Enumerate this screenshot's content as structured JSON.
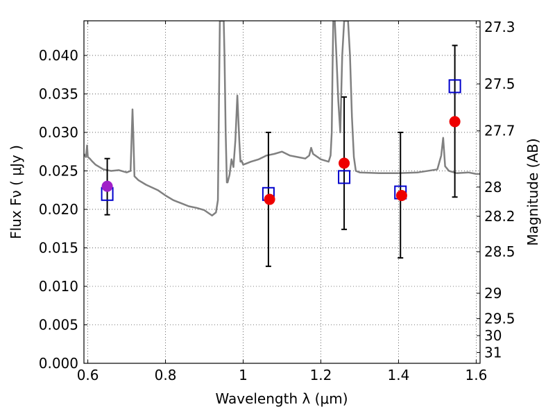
{
  "chart_data": {
    "type": "scatter",
    "xlabel": "Wavelength  λ (μm)",
    "ylabel": "Flux  Fν  ( μJy )",
    "y2label": "Magnitude (AB)",
    "xlim": [
      0.59,
      1.61
    ],
    "ylim": [
      0.0,
      0.0445
    ],
    "grid": true,
    "x_ticks": [
      0.6,
      0.8,
      1.0,
      1.2,
      1.4,
      1.6
    ],
    "x_tick_labels": [
      "0.6",
      "0.8",
      "1",
      "1.2",
      "1.4",
      "1.6"
    ],
    "y_ticks": [
      0.0,
      0.005,
      0.01,
      0.015,
      0.02,
      0.025,
      0.03,
      0.035,
      0.04
    ],
    "y_tick_labels": [
      "0.000",
      "0.005",
      "0.010",
      "0.015",
      "0.020",
      "0.025",
      "0.030",
      "0.035",
      "0.040"
    ],
    "y2_ticks": [
      {
        "label": "27.3",
        "flux": 0.0437
      },
      {
        "label": "27.5",
        "flux": 0.0363
      },
      {
        "label": "27.7",
        "flux": 0.0302
      },
      {
        "label": "28",
        "flux": 0.0229
      },
      {
        "label": "28.2",
        "flux": 0.0191
      },
      {
        "label": "28.5",
        "flux": 0.0145
      },
      {
        "label": "29",
        "flux": 0.0091
      },
      {
        "label": "29.5",
        "flux": 0.0058
      },
      {
        "label": "30",
        "flux": 0.0036
      },
      {
        "label": "31",
        "flux": 0.0014
      }
    ],
    "series": [
      {
        "kind": "line",
        "color": "#808080",
        "x": [
          0.59,
          0.595,
          0.598,
          0.6,
          0.605,
          0.61,
          0.62,
          0.63,
          0.64,
          0.66,
          0.68,
          0.7,
          0.71,
          0.715,
          0.717,
          0.72,
          0.73,
          0.75,
          0.78,
          0.8,
          0.82,
          0.84,
          0.86,
          0.88,
          0.9,
          0.92,
          0.93,
          0.935,
          0.94,
          0.945,
          0.948,
          0.95,
          0.952,
          0.955,
          0.958,
          0.96,
          0.965,
          0.97,
          0.975,
          0.98,
          0.985,
          0.99,
          0.993,
          0.996,
          1.0,
          1.01,
          1.02,
          1.04,
          1.06,
          1.08,
          1.1,
          1.12,
          1.14,
          1.16,
          1.17,
          1.175,
          1.18,
          1.2,
          1.22,
          1.225,
          1.228,
          1.23,
          1.232,
          1.234,
          1.236,
          1.24,
          1.245,
          1.25,
          1.255,
          1.26,
          1.265,
          1.27,
          1.275,
          1.28,
          1.285,
          1.29,
          1.3,
          1.35,
          1.4,
          1.45,
          1.5,
          1.51,
          1.515,
          1.52,
          1.53,
          1.55,
          1.58,
          1.6,
          1.61
        ],
        "y": [
          0.0272,
          0.0268,
          0.0283,
          0.0268,
          0.0266,
          0.0263,
          0.0258,
          0.0255,
          0.0252,
          0.025,
          0.0251,
          0.0248,
          0.025,
          0.033,
          0.03,
          0.0243,
          0.0238,
          0.0232,
          0.0225,
          0.0218,
          0.0212,
          0.0208,
          0.0204,
          0.0202,
          0.0199,
          0.0192,
          0.0196,
          0.0212,
          0.0445,
          0.0445,
          0.0445,
          0.0445,
          0.04,
          0.03,
          0.0235,
          0.0235,
          0.0245,
          0.0265,
          0.0255,
          0.029,
          0.0348,
          0.029,
          0.0262,
          0.0263,
          0.0258,
          0.026,
          0.0262,
          0.0265,
          0.027,
          0.0272,
          0.0275,
          0.027,
          0.0268,
          0.0266,
          0.027,
          0.028,
          0.0272,
          0.0265,
          0.0262,
          0.027,
          0.03,
          0.038,
          0.0445,
          0.0445,
          0.0445,
          0.04,
          0.034,
          0.03,
          0.04,
          0.0445,
          0.0445,
          0.0445,
          0.04,
          0.032,
          0.0268,
          0.025,
          0.0248,
          0.0247,
          0.0247,
          0.0248,
          0.0252,
          0.027,
          0.0293,
          0.0256,
          0.025,
          0.0247,
          0.0248,
          0.0246,
          0.0246
        ]
      },
      {
        "kind": "errorbar-squares",
        "color": "#0000cc",
        "x": [
          0.65,
          1.065,
          1.26,
          1.405,
          1.545
        ],
        "y": [
          0.022,
          0.022,
          0.0242,
          0.0222,
          0.036
        ],
        "err_low": [
          0.0193,
          0.0126,
          0.0174,
          0.0137,
          0.0216
        ],
        "err_high": [
          0.0266,
          0.03,
          0.0346,
          0.03,
          0.0413
        ]
      },
      {
        "kind": "points",
        "color": "#ee0000",
        "x": [
          1.068,
          1.26,
          1.408,
          1.545
        ],
        "y": [
          0.0213,
          0.026,
          0.0218,
          0.0314
        ]
      },
      {
        "kind": "points",
        "color": "#a020c8",
        "x": [
          0.65
        ],
        "y": [
          0.023
        ]
      }
    ]
  }
}
